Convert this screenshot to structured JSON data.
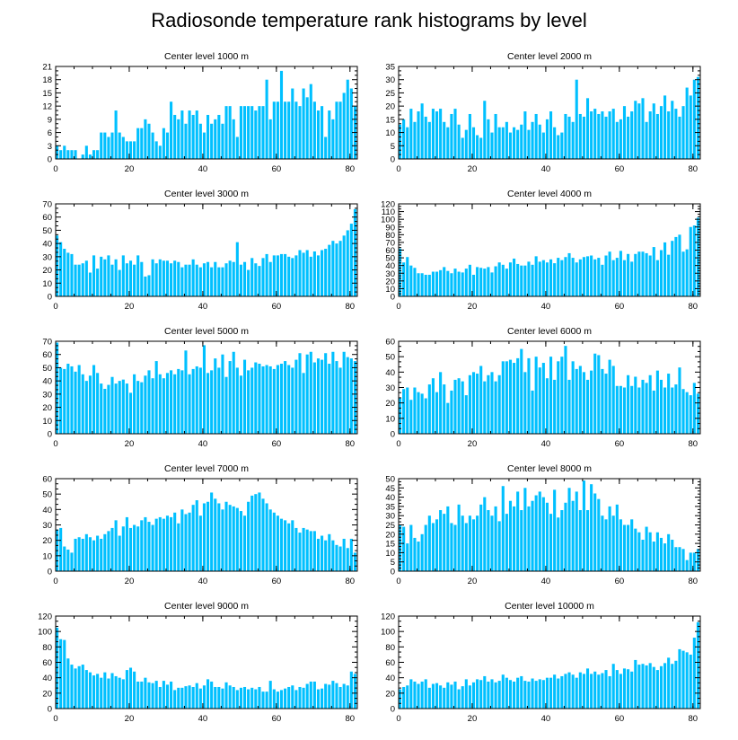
{
  "title": "Radiosonde temperature rank histograms by level",
  "colors": {
    "bar": "#00c0ff",
    "axis": "#000000"
  },
  "chart_data": [
    {
      "type": "bar",
      "title": "Center level 1000 m",
      "xlim": [
        0,
        82
      ],
      "ylim": [
        0,
        21
      ],
      "xticks": [
        0,
        20,
        40,
        60,
        80
      ],
      "yticks": [
        0,
        3,
        6,
        9,
        12,
        15,
        18,
        21
      ],
      "values": [
        3,
        2,
        3,
        2,
        2,
        2,
        0,
        1,
        3,
        1,
        2,
        2,
        6,
        6,
        5,
        6,
        11,
        6,
        5,
        4,
        4,
        4,
        7,
        7,
        9,
        8,
        6,
        4,
        3,
        7,
        6,
        13,
        10,
        9,
        11,
        8,
        11,
        10,
        11,
        8,
        6,
        10,
        8,
        9,
        10,
        8,
        12,
        12,
        9,
        5,
        12,
        12,
        12,
        12,
        11,
        12,
        12,
        18,
        9,
        13,
        13,
        20,
        13,
        13,
        16,
        13,
        12,
        16,
        14,
        17,
        13,
        11,
        12,
        5,
        11,
        9,
        13,
        13,
        15,
        18,
        16,
        12
      ]
    },
    {
      "type": "bar",
      "title": "Center level 2000 m",
      "xlim": [
        0,
        82
      ],
      "ylim": [
        0,
        35
      ],
      "xticks": [
        0,
        20,
        40,
        60,
        80
      ],
      "yticks": [
        0,
        5,
        10,
        15,
        20,
        25,
        30,
        35
      ],
      "values": [
        13,
        15,
        12,
        19,
        14,
        18,
        21,
        16,
        14,
        19,
        18,
        19,
        14,
        12,
        17,
        19,
        13,
        8,
        11,
        17,
        12,
        9,
        8,
        22,
        15,
        10,
        17,
        12,
        12,
        14,
        10,
        12,
        11,
        13,
        18,
        11,
        14,
        17,
        13,
        10,
        15,
        18,
        12,
        9,
        10,
        17,
        16,
        14,
        30,
        17,
        16,
        23,
        18,
        19,
        17,
        18,
        16,
        18,
        19,
        14,
        15,
        20,
        16,
        18,
        22,
        21,
        23,
        14,
        18,
        21,
        17,
        20,
        24,
        18,
        22,
        19,
        16,
        20,
        27,
        24,
        30,
        31
      ]
    },
    {
      "type": "bar",
      "title": "Center level 3000 m",
      "xlim": [
        0,
        82
      ],
      "ylim": [
        0,
        70
      ],
      "xticks": [
        0,
        20,
        40,
        60,
        80
      ],
      "yticks": [
        0,
        10,
        20,
        30,
        40,
        50,
        60,
        70
      ],
      "values": [
        46,
        41,
        36,
        33,
        32,
        24,
        24,
        25,
        27,
        18,
        31,
        21,
        30,
        28,
        31,
        24,
        28,
        20,
        31,
        25,
        27,
        24,
        31,
        26,
        15,
        16,
        28,
        25,
        28,
        27,
        27,
        25,
        27,
        26,
        22,
        24,
        24,
        28,
        24,
        22,
        25,
        26,
        22,
        26,
        22,
        22,
        25,
        27,
        26,
        41,
        24,
        26,
        20,
        29,
        25,
        23,
        29,
        32,
        26,
        31,
        31,
        32,
        32,
        30,
        29,
        31,
        35,
        33,
        35,
        30,
        34,
        31,
        35,
        36,
        39,
        42,
        40,
        42,
        46,
        50,
        55,
        66
      ]
    },
    {
      "type": "bar",
      "title": "Center level 4000 m",
      "xlim": [
        0,
        82
      ],
      "ylim": [
        0,
        120
      ],
      "xticks": [
        0,
        20,
        40,
        60,
        80
      ],
      "yticks": [
        0,
        10,
        20,
        30,
        40,
        50,
        60,
        70,
        80,
        90,
        100,
        110,
        120
      ],
      "values": [
        62,
        44,
        51,
        40,
        37,
        30,
        30,
        28,
        28,
        32,
        32,
        34,
        38,
        33,
        30,
        36,
        32,
        31,
        36,
        41,
        28,
        38,
        37,
        36,
        38,
        31,
        39,
        44,
        41,
        36,
        44,
        49,
        42,
        40,
        40,
        45,
        41,
        52,
        45,
        47,
        44,
        48,
        43,
        50,
        47,
        51,
        56,
        50,
        44,
        48,
        51,
        52,
        53,
        48,
        50,
        41,
        53,
        58,
        47,
        50,
        59,
        47,
        55,
        45,
        55,
        58,
        58,
        56,
        53,
        64,
        47,
        60,
        70,
        54,
        72,
        77,
        80,
        58,
        61,
        90,
        92,
        102
      ]
    },
    {
      "type": "bar",
      "title": "Center level 5000 m",
      "xlim": [
        0,
        82
      ],
      "ylim": [
        0,
        70
      ],
      "xticks": [
        0,
        20,
        40,
        60,
        80
      ],
      "yticks": [
        0,
        10,
        20,
        30,
        40,
        50,
        60,
        70
      ],
      "values": [
        69,
        50,
        49,
        53,
        51,
        47,
        52,
        45,
        40,
        44,
        52,
        46,
        38,
        34,
        37,
        43,
        38,
        40,
        41,
        38,
        31,
        45,
        40,
        39,
        44,
        48,
        42,
        55,
        45,
        42,
        46,
        48,
        45,
        49,
        48,
        63,
        45,
        49,
        51,
        50,
        67,
        46,
        48,
        57,
        50,
        60,
        43,
        55,
        62,
        50,
        44,
        56,
        48,
        50,
        54,
        53,
        51,
        52,
        51,
        49,
        52,
        53,
        55,
        52,
        50,
        56,
        61,
        46,
        60,
        62,
        54,
        57,
        56,
        61,
        53,
        62,
        55,
        50,
        62,
        58,
        57,
        55
      ]
    },
    {
      "type": "bar",
      "title": "Center level 6000 m",
      "xlim": [
        0,
        82
      ],
      "ylim": [
        0,
        60
      ],
      "xticks": [
        0,
        20,
        40,
        60,
        80
      ],
      "yticks": [
        0,
        10,
        20,
        30,
        40,
        50,
        60
      ],
      "values": [
        23,
        29,
        30,
        22,
        30,
        27,
        26,
        23,
        32,
        36,
        27,
        40,
        32,
        20,
        28,
        35,
        36,
        34,
        25,
        38,
        40,
        39,
        44,
        34,
        38,
        40,
        34,
        38,
        47,
        47,
        48,
        46,
        49,
        55,
        40,
        49,
        28,
        50,
        43,
        46,
        36,
        50,
        35,
        47,
        50,
        57,
        35,
        47,
        42,
        44,
        40,
        35,
        41,
        52,
        51,
        42,
        39,
        48,
        44,
        31,
        31,
        30,
        38,
        31,
        37,
        30,
        35,
        33,
        38,
        28,
        41,
        35,
        30,
        39,
        30,
        32,
        43,
        29,
        27,
        25,
        33,
        26
      ]
    },
    {
      "type": "bar",
      "title": "Center level 7000 m",
      "xlim": [
        0,
        82
      ],
      "ylim": [
        0,
        60
      ],
      "xticks": [
        0,
        20,
        40,
        60,
        80
      ],
      "yticks": [
        0,
        10,
        20,
        30,
        40,
        50,
        60
      ],
      "values": [
        27,
        28,
        16,
        14,
        12,
        21,
        22,
        21,
        24,
        22,
        20,
        23,
        21,
        24,
        26,
        28,
        33,
        23,
        29,
        35,
        28,
        30,
        29,
        33,
        35,
        32,
        30,
        34,
        35,
        34,
        36,
        35,
        38,
        31,
        40,
        37,
        38,
        43,
        46,
        36,
        44,
        45,
        51,
        47,
        44,
        40,
        45,
        43,
        42,
        41,
        39,
        36,
        45,
        49,
        50,
        51,
        47,
        44,
        40,
        38,
        36,
        34,
        33,
        31,
        33,
        28,
        25,
        28,
        27,
        26,
        26,
        21,
        23,
        20,
        24,
        20,
        17,
        16,
        21,
        15,
        21,
        12
      ]
    },
    {
      "type": "bar",
      "title": "Center level 8000 m",
      "xlim": [
        0,
        82
      ],
      "ylim": [
        0,
        50
      ],
      "xticks": [
        0,
        20,
        40,
        60,
        80
      ],
      "yticks": [
        0,
        5,
        10,
        15,
        20,
        25,
        30,
        35,
        40,
        45,
        50
      ],
      "values": [
        25,
        24,
        15,
        25,
        18,
        16,
        20,
        25,
        30,
        26,
        28,
        33,
        31,
        35,
        26,
        25,
        36,
        30,
        26,
        30,
        28,
        30,
        36,
        40,
        33,
        30,
        35,
        27,
        46,
        31,
        38,
        35,
        43,
        33,
        45,
        35,
        38,
        41,
        43,
        40,
        37,
        31,
        44,
        29,
        33,
        37,
        45,
        38,
        43,
        33,
        49,
        33,
        47,
        42,
        39,
        30,
        28,
        35,
        30,
        36,
        28,
        25,
        25,
        28,
        23,
        21,
        17,
        24,
        21,
        16,
        21,
        18,
        15,
        20,
        17,
        13,
        13,
        12,
        6,
        10,
        10,
        12
      ]
    },
    {
      "type": "bar",
      "title": "Center level 9000 m",
      "xlim": [
        0,
        82
      ],
      "ylim": [
        0,
        120
      ],
      "xticks": [
        0,
        20,
        40,
        60,
        80
      ],
      "yticks": [
        0,
        20,
        40,
        60,
        80,
        100,
        120
      ],
      "values": [
        105,
        90,
        89,
        65,
        57,
        52,
        55,
        57,
        50,
        47,
        43,
        45,
        40,
        47,
        39,
        46,
        42,
        40,
        38,
        50,
        53,
        48,
        35,
        35,
        40,
        34,
        33,
        36,
        28,
        36,
        31,
        35,
        24,
        27,
        27,
        29,
        30,
        28,
        33,
        26,
        30,
        38,
        35,
        28,
        28,
        26,
        34,
        30,
        28,
        24,
        27,
        28,
        25,
        27,
        25,
        28,
        22,
        22,
        36,
        25,
        22,
        24,
        26,
        28,
        30,
        24,
        28,
        27,
        32,
        35,
        35,
        25,
        26,
        32,
        31,
        36,
        33,
        28,
        32,
        30,
        48,
        45
      ]
    },
    {
      "type": "bar",
      "title": "Center level 10000 m",
      "xlim": [
        0,
        82
      ],
      "ylim": [
        0,
        120
      ],
      "xticks": [
        0,
        20,
        40,
        60,
        80
      ],
      "yticks": [
        0,
        20,
        40,
        60,
        80,
        100,
        120
      ],
      "values": [
        25,
        28,
        30,
        38,
        35,
        32,
        35,
        38,
        27,
        32,
        33,
        30,
        27,
        34,
        31,
        35,
        25,
        29,
        38,
        30,
        34,
        38,
        37,
        42,
        35,
        38,
        34,
        36,
        44,
        40,
        37,
        35,
        40,
        42,
        36,
        35,
        39,
        36,
        38,
        37,
        40,
        40,
        44,
        39,
        42,
        45,
        47,
        44,
        40,
        47,
        45,
        52,
        45,
        48,
        44,
        46,
        50,
        42,
        58,
        50,
        45,
        52,
        51,
        48,
        63,
        57,
        58,
        56,
        59,
        54,
        50,
        55,
        59,
        66,
        58,
        62,
        77,
        75,
        73,
        70,
        92,
        112
      ]
    }
  ]
}
